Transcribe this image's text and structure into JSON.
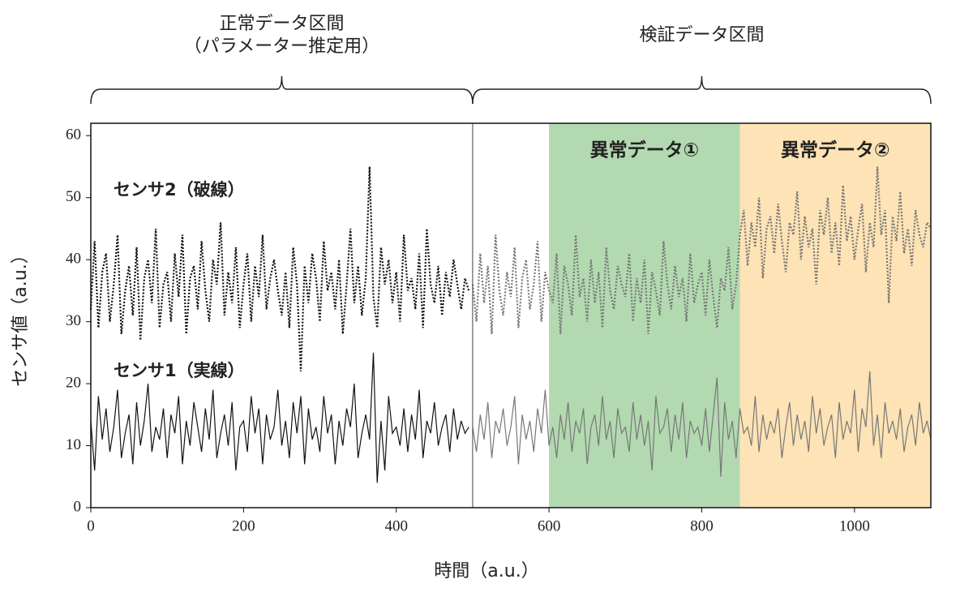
{
  "chart_data": {
    "type": "line",
    "xlabel": "時間（a.u.）",
    "ylabel": "センサ値（a.u.）",
    "xlim": [
      0,
      1100
    ],
    "xticks": [
      0,
      200,
      400,
      600,
      800,
      1000
    ],
    "ylim": [
      0,
      62
    ],
    "yticks": [
      0,
      10,
      20,
      30,
      40,
      50,
      60
    ],
    "intervals": [
      {
        "label": [
          "正常データ区間",
          "（パラメーター推定用）"
        ],
        "range": [
          0,
          500
        ]
      },
      {
        "label": [
          "検証データ区間"
        ],
        "range": [
          500,
          1100
        ]
      }
    ],
    "regions": [
      {
        "label": "異常データ①",
        "range": [
          600,
          850
        ],
        "color": "#b3d9b1"
      },
      {
        "label": "異常データ②",
        "range": [
          850,
          1100
        ],
        "color": "#fde3b5"
      }
    ],
    "x": [
      0,
      5,
      10,
      15,
      20,
      25,
      30,
      35,
      40,
      45,
      50,
      55,
      60,
      65,
      70,
      75,
      80,
      85,
      90,
      95,
      100,
      105,
      110,
      115,
      120,
      125,
      130,
      135,
      140,
      145,
      150,
      155,
      160,
      165,
      170,
      175,
      180,
      185,
      190,
      195,
      200,
      205,
      210,
      215,
      220,
      225,
      230,
      235,
      240,
      245,
      250,
      255,
      260,
      265,
      270,
      275,
      280,
      285,
      290,
      295,
      300,
      305,
      310,
      315,
      320,
      325,
      330,
      335,
      340,
      345,
      350,
      355,
      360,
      365,
      370,
      375,
      380,
      385,
      390,
      395,
      400,
      405,
      410,
      415,
      420,
      425,
      430,
      435,
      440,
      445,
      450,
      455,
      460,
      465,
      470,
      475,
      480,
      485,
      490,
      495,
      500,
      505,
      510,
      515,
      520,
      525,
      530,
      535,
      540,
      545,
      550,
      555,
      560,
      565,
      570,
      575,
      580,
      585,
      590,
      595,
      600,
      605,
      610,
      615,
      620,
      625,
      630,
      635,
      640,
      645,
      650,
      655,
      660,
      665,
      670,
      675,
      680,
      685,
      690,
      695,
      700,
      705,
      710,
      715,
      720,
      725,
      730,
      735,
      740,
      745,
      750,
      755,
      760,
      765,
      770,
      775,
      780,
      785,
      790,
      795,
      800,
      805,
      810,
      815,
      820,
      825,
      830,
      835,
      840,
      845,
      850,
      855,
      860,
      865,
      870,
      875,
      880,
      885,
      890,
      895,
      900,
      905,
      910,
      915,
      920,
      925,
      930,
      935,
      940,
      945,
      950,
      955,
      960,
      965,
      970,
      975,
      980,
      985,
      990,
      995,
      1000,
      1005,
      1010,
      1015,
      1020,
      1025,
      1030,
      1035,
      1040,
      1045,
      1050,
      1055,
      1060,
      1065,
      1070,
      1075,
      1080,
      1085,
      1090,
      1095,
      1100
    ],
    "series": [
      {
        "name": "センサ1（実線）",
        "color": "#111111",
        "line_style": "solid",
        "values": [
          14,
          6,
          18,
          11,
          16,
          9,
          13,
          19,
          8,
          12,
          15,
          7,
          17,
          10,
          14,
          20,
          9,
          13,
          11,
          16,
          8,
          15,
          12,
          18,
          7,
          14,
          10,
          17,
          13,
          9,
          16,
          11,
          19,
          8,
          12,
          15,
          10,
          17,
          6,
          13,
          14,
          9,
          18,
          12,
          16,
          7,
          15,
          11,
          13,
          19,
          10,
          14,
          8,
          17,
          12,
          18,
          7,
          16,
          11,
          13,
          9,
          18,
          12,
          15,
          7,
          14,
          10,
          16,
          13,
          20,
          8,
          12,
          15,
          11,
          25,
          4,
          14,
          6,
          18,
          12,
          13,
          10,
          16,
          9,
          15,
          11,
          19,
          8,
          14,
          12,
          17,
          10,
          13,
          15,
          9,
          16,
          11,
          14,
          12,
          13,
          null,
          null,
          null,
          null,
          null,
          null,
          null,
          null,
          null,
          null,
          null,
          null,
          null,
          null,
          null,
          null,
          null,
          null,
          null,
          null,
          null,
          null,
          null,
          null,
          null,
          null,
          null,
          null,
          null,
          null,
          null,
          null,
          null,
          null,
          null,
          null,
          null,
          null,
          null,
          null,
          null,
          null,
          null,
          null,
          null,
          null,
          null,
          null,
          null,
          null,
          null,
          null,
          null,
          null,
          null,
          null,
          null,
          null,
          null,
          null,
          null,
          null,
          null,
          null,
          null,
          null,
          null,
          null,
          null,
          null,
          null,
          null,
          null,
          null,
          null,
          null,
          null,
          null,
          null,
          null,
          null,
          null,
          null,
          null,
          null,
          null,
          null,
          null,
          null,
          null,
          null,
          null,
          null,
          null,
          null,
          null,
          null,
          null,
          null,
          null,
          null,
          null,
          null,
          null,
          null,
          null,
          null,
          null,
          null,
          null,
          null,
          null,
          null,
          null,
          null,
          null,
          null,
          null,
          null,
          null,
          null
        ]
      },
      {
        "color": "#777777",
        "line_style": "solid",
        "values": [
          null,
          null,
          null,
          null,
          null,
          null,
          null,
          null,
          null,
          null,
          null,
          null,
          null,
          null,
          null,
          null,
          null,
          null,
          null,
          null,
          null,
          null,
          null,
          null,
          null,
          null,
          null,
          null,
          null,
          null,
          null,
          null,
          null,
          null,
          null,
          null,
          null,
          null,
          null,
          null,
          null,
          null,
          null,
          null,
          null,
          null,
          null,
          null,
          null,
          null,
          null,
          null,
          null,
          null,
          null,
          null,
          null,
          null,
          null,
          null,
          null,
          null,
          null,
          null,
          null,
          null,
          null,
          null,
          null,
          null,
          null,
          null,
          null,
          null,
          null,
          null,
          null,
          null,
          null,
          null,
          null,
          null,
          null,
          null,
          null,
          null,
          null,
          null,
          null,
          null,
          null,
          null,
          null,
          null,
          null,
          null,
          null,
          null,
          null,
          null,
          13,
          9,
          15,
          11,
          17,
          8,
          14,
          12,
          16,
          10,
          13,
          18,
          7,
          15,
          11,
          14,
          9,
          16,
          12,
          19,
          10,
          13,
          8,
          15,
          11,
          17,
          9,
          14,
          12,
          16,
          7,
          13,
          15,
          10,
          18,
          11,
          14,
          8,
          16,
          12,
          13,
          9,
          17,
          11,
          15,
          10,
          14,
          6,
          18,
          12,
          13,
          16,
          9,
          15,
          11,
          17,
          8,
          14,
          12,
          13,
          10,
          16,
          9,
          15,
          21,
          5,
          17,
          11,
          14,
          8,
          16,
          12,
          13,
          10,
          18,
          9,
          15,
          11,
          14,
          12,
          16,
          8,
          13,
          17,
          10,
          15,
          11,
          14,
          9,
          18,
          12,
          16,
          10,
          13,
          15,
          8,
          17,
          11,
          14,
          12,
          19,
          9,
          16,
          13,
          22,
          10,
          15,
          8,
          17,
          12,
          14,
          11,
          16,
          9,
          13,
          15,
          10,
          17,
          12,
          14,
          11
        ]
      },
      {
        "name": "センサ2（破線）",
        "color": "#111111",
        "line_style": "dotted",
        "values": [
          32,
          43,
          29,
          38,
          41,
          30,
          36,
          44,
          28,
          35,
          39,
          31,
          42,
          27,
          37,
          40,
          33,
          45,
          29,
          36,
          38,
          30,
          41,
          34,
          44,
          28,
          37,
          39,
          32,
          43,
          35,
          30,
          40,
          36,
          46,
          31,
          38,
          33,
          42,
          29,
          36,
          41,
          30,
          39,
          34,
          44,
          32,
          37,
          40,
          35,
          31,
          38,
          29,
          42,
          36,
          22,
          39,
          33,
          41,
          37,
          30,
          43,
          35,
          38,
          32,
          40,
          28,
          36,
          45,
          33,
          39,
          31,
          37,
          55,
          34,
          29,
          42,
          36,
          40,
          33,
          38,
          30,
          44,
          35,
          37,
          32,
          41,
          29,
          45,
          36,
          33,
          39,
          31,
          38,
          34,
          40,
          36,
          32,
          37,
          35,
          null,
          null,
          null,
          null,
          null,
          null,
          null,
          null,
          null,
          null,
          null,
          null,
          null,
          null,
          null,
          null,
          null,
          null,
          null,
          null,
          null,
          null,
          null,
          null,
          null,
          null,
          null,
          null,
          null,
          null,
          null,
          null,
          null,
          null,
          null,
          null,
          null,
          null,
          null,
          null,
          null,
          null,
          null,
          null,
          null,
          null,
          null,
          null,
          null,
          null,
          null,
          null,
          null,
          null,
          null,
          null,
          null,
          null,
          null,
          null,
          null,
          null,
          null,
          null,
          null,
          null,
          null,
          null,
          null,
          null,
          null,
          null,
          null,
          null,
          null,
          null,
          null,
          null,
          null,
          null,
          null,
          null,
          null,
          null,
          null,
          null,
          null,
          null,
          null,
          null,
          null,
          null,
          null,
          null,
          null,
          null,
          null,
          null,
          null,
          null,
          null,
          null,
          null,
          null,
          null,
          null,
          null,
          null,
          null,
          null,
          null,
          null,
          null,
          null,
          null,
          null,
          null,
          null,
          null,
          null,
          null
        ]
      },
      {
        "color": "#777777",
        "line_style": "dotted",
        "values": [
          null,
          null,
          null,
          null,
          null,
          null,
          null,
          null,
          null,
          null,
          null,
          null,
          null,
          null,
          null,
          null,
          null,
          null,
          null,
          null,
          null,
          null,
          null,
          null,
          null,
          null,
          null,
          null,
          null,
          null,
          null,
          null,
          null,
          null,
          null,
          null,
          null,
          null,
          null,
          null,
          null,
          null,
          null,
          null,
          null,
          null,
          null,
          null,
          null,
          null,
          null,
          null,
          null,
          null,
          null,
          null,
          null,
          null,
          null,
          null,
          null,
          null,
          null,
          null,
          null,
          null,
          null,
          null,
          null,
          null,
          null,
          null,
          null,
          null,
          null,
          null,
          null,
          null,
          null,
          null,
          null,
          null,
          null,
          null,
          null,
          null,
          null,
          null,
          null,
          null,
          null,
          null,
          null,
          null,
          null,
          null,
          null,
          null,
          null,
          null,
          36,
          30,
          41,
          33,
          39,
          28,
          44,
          35,
          31,
          38,
          34,
          42,
          29,
          37,
          40,
          32,
          36,
          43,
          30,
          38,
          35,
          33,
          41,
          28,
          39,
          36,
          31,
          44,
          34,
          37,
          30,
          40,
          33,
          38,
          29,
          42,
          35,
          32,
          39,
          36,
          34,
          41,
          30,
          37,
          33,
          40,
          28,
          38,
          35,
          31,
          43,
          36,
          32,
          39,
          34,
          37,
          30,
          41,
          33,
          36,
          38,
          31,
          40,
          34,
          29,
          37,
          35,
          42,
          32,
          36,
          44,
          48,
          39,
          46,
          42,
          50,
          37,
          45,
          47,
          41,
          49,
          43,
          38,
          46,
          44,
          51,
          40,
          47,
          42,
          45,
          36,
          48,
          44,
          50,
          41,
          46,
          39,
          52,
          43,
          47,
          40,
          45,
          49,
          38,
          46,
          42,
          55,
          44,
          48,
          33,
          47,
          43,
          51,
          41,
          45,
          39,
          48,
          44,
          42,
          46,
          45
        ]
      }
    ]
  }
}
